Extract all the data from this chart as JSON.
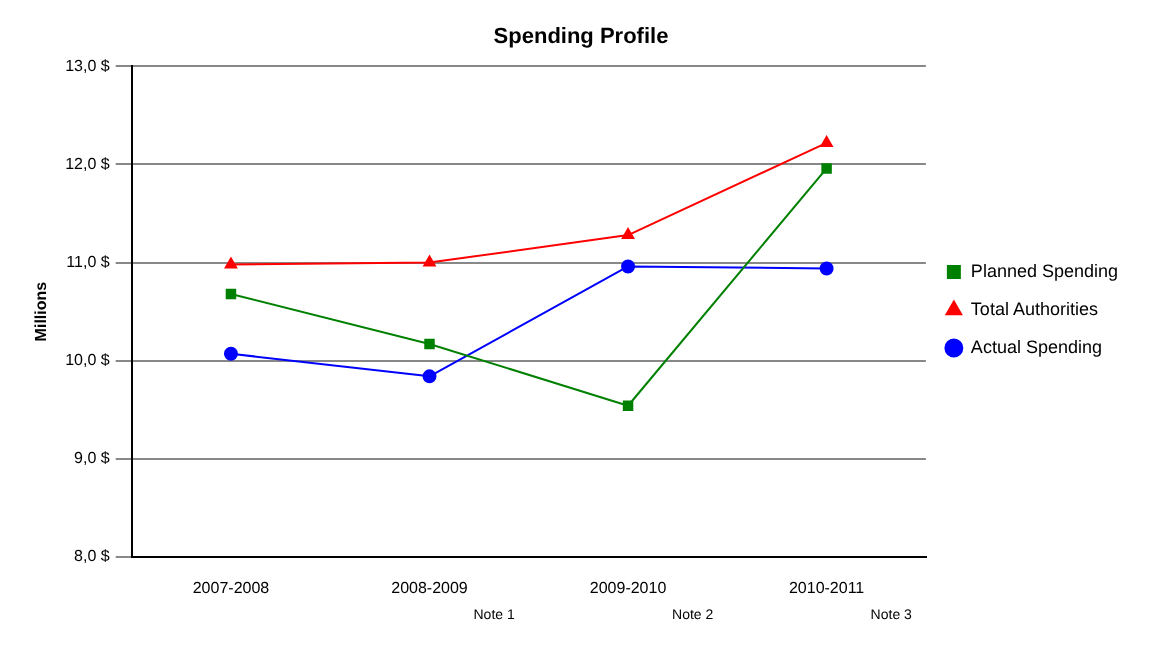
{
  "chart_data": {
    "type": "line",
    "title": "Spending Profile",
    "ylabel": "Millions",
    "categories": [
      "2007-2008",
      "2008-2009",
      "2009-2010",
      "2010-2011"
    ],
    "series": [
      {
        "name": "Planned Spending",
        "color": "#008000",
        "marker": "square",
        "values": [
          10.68,
          10.17,
          9.54,
          11.96
        ]
      },
      {
        "name": "Total Authorities",
        "color": "#ff0000",
        "marker": "triangle",
        "values": [
          10.98,
          11.0,
          11.28,
          12.22
        ]
      },
      {
        "name": "Actual Spending",
        "color": "#0000ff",
        "marker": "circle",
        "values": [
          10.07,
          9.84,
          10.96,
          10.94
        ]
      }
    ],
    "ylim": [
      8,
      13
    ],
    "yticks": [
      {
        "value": 8,
        "label": "8,0 $"
      },
      {
        "value": 9,
        "label": "9,0 $"
      },
      {
        "value": 10,
        "label": "10,0 $"
      },
      {
        "value": 11,
        "label": "11,0 $"
      },
      {
        "value": 12,
        "label": "12,0 $"
      },
      {
        "value": 13,
        "label": "13,0 $"
      }
    ],
    "grid": "y",
    "legend": "right",
    "annotations": [
      "Note 1",
      "Note 2",
      "Note 3"
    ]
  }
}
